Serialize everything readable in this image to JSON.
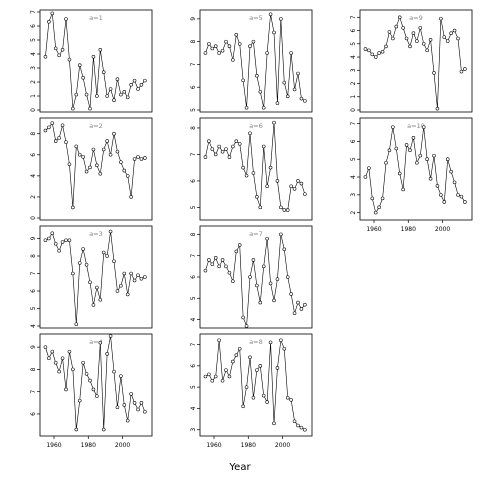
{
  "chart_data": {
    "type": "line",
    "xlabel": "Year",
    "x": [
      1955,
      1957,
      1959,
      1961,
      1963,
      1965,
      1967,
      1969,
      1971,
      1973,
      1975,
      1977,
      1979,
      1981,
      1983,
      1985,
      1987,
      1989,
      1991,
      1993,
      1995,
      1997,
      1999,
      2001,
      2003,
      2005,
      2007,
      2009,
      2011,
      2013
    ],
    "grid": false,
    "panels": [
      {
        "label": "a=1",
        "ylim": [
          0,
          7
        ],
        "yticks": [
          0,
          1,
          2,
          3,
          4,
          5,
          6,
          7
        ],
        "xticks": [],
        "xlim": [
          1953,
          2016
        ],
        "values": [
          3.8,
          6.3,
          6.9,
          4.4,
          3.9,
          4.3,
          6.5,
          3.6,
          0.1,
          1.1,
          3.2,
          2.3,
          1.1,
          0.1,
          3.8,
          1.0,
          4.3,
          2.7,
          1.0,
          1.5,
          0.7,
          2.2,
          1.1,
          1.3,
          0.9,
          1.8,
          2.1,
          1.5,
          1.8,
          2.1
        ]
      },
      {
        "label": "a=5",
        "ylim": [
          5,
          9.3
        ],
        "yticks": [
          5,
          6,
          7,
          8,
          9
        ],
        "xticks": [],
        "xlim": [
          1953,
          2016
        ],
        "values": [
          7.5,
          7.9,
          7.7,
          7.8,
          7.5,
          7.6,
          8.0,
          7.8,
          7.2,
          8.3,
          7.9,
          6.3,
          5.1,
          7.8,
          8.0,
          6.5,
          5.8,
          5.1,
          7.5,
          9.2,
          8.4,
          5.3,
          9.0,
          6.2,
          5.6,
          7.5,
          5.9,
          6.6,
          5.5,
          5.4
        ]
      },
      {
        "label": "a=9",
        "ylim": [
          0,
          7.4
        ],
        "yticks": [
          0,
          1,
          2,
          3,
          4,
          5,
          6,
          7
        ],
        "xticks": [],
        "xlim": [
          1953,
          2016
        ],
        "values": [
          4.6,
          4.5,
          4.2,
          4.0,
          4.3,
          4.4,
          4.8,
          5.9,
          5.4,
          6.3,
          7.0,
          6.2,
          5.4,
          4.8,
          5.8,
          5.2,
          6.2,
          5.0,
          4.5,
          5.3,
          2.8,
          0.1,
          6.9,
          5.5,
          5.2,
          5.8,
          6.0,
          5.4,
          2.9,
          3.1
        ]
      },
      {
        "label": "a=2",
        "ylim": [
          0,
          9.3
        ],
        "yticks": [
          0,
          2,
          4,
          6,
          8
        ],
        "xticks": [],
        "xlim": [
          1953,
          2016
        ],
        "values": [
          8.3,
          8.6,
          9.0,
          7.3,
          7.6,
          8.8,
          7.2,
          5.1,
          1.0,
          6.8,
          6.0,
          5.8,
          4.4,
          4.8,
          6.5,
          5.0,
          4.2,
          6.5,
          7.3,
          6.0,
          8.0,
          6.3,
          5.3,
          4.5,
          4.0,
          2.0,
          5.6,
          5.8,
          5.6,
          5.7
        ]
      },
      {
        "label": "a=6",
        "ylim": [
          4.6,
          8.3
        ],
        "yticks": [
          5,
          6,
          7,
          8
        ],
        "xticks": [],
        "xlim": [
          1953,
          2016
        ],
        "values": [
          6.9,
          7.5,
          7.2,
          7.0,
          7.3,
          7.1,
          7.2,
          6.9,
          7.3,
          7.5,
          7.4,
          6.5,
          6.2,
          7.8,
          6.3,
          5.4,
          5.0,
          7.3,
          5.8,
          6.5,
          8.2,
          6.0,
          5.0,
          4.9,
          4.9,
          5.8,
          5.7,
          6.0,
          5.9,
          5.5
        ]
      },
      {
        "label": "a=10",
        "ylim": [
          1.7,
          7.2
        ],
        "yticks": [
          2,
          3,
          4,
          5,
          6,
          7
        ],
        "xticks": [
          1960,
          1980,
          2000
        ],
        "xlim": [
          1953,
          2016
        ],
        "values": [
          4.0,
          4.5,
          2.8,
          2.0,
          2.3,
          2.8,
          4.8,
          5.5,
          6.8,
          5.6,
          4.2,
          3.3,
          5.8,
          5.5,
          6.2,
          4.8,
          5.2,
          6.8,
          5.0,
          3.9,
          5.2,
          3.5,
          3.0,
          2.6,
          5.0,
          4.3,
          3.7,
          3.0,
          2.9,
          2.6
        ]
      },
      {
        "label": "a=3",
        "ylim": [
          4,
          9.6
        ],
        "yticks": [
          4,
          5,
          6,
          7,
          8,
          9
        ],
        "xticks": [],
        "xlim": [
          1953,
          2016
        ],
        "values": [
          8.9,
          9.0,
          9.3,
          8.7,
          8.3,
          8.8,
          8.9,
          8.9,
          7.0,
          4.1,
          7.6,
          8.4,
          7.5,
          6.5,
          5.2,
          6.2,
          5.5,
          8.2,
          8.0,
          9.4,
          7.7,
          6.0,
          6.3,
          7.0,
          5.8,
          7.0,
          6.6,
          6.9,
          6.7,
          6.8
        ]
      },
      {
        "label": "a=7",
        "ylim": [
          3.7,
          8.3
        ],
        "yticks": [
          4,
          5,
          6,
          7,
          8
        ],
        "xticks": [],
        "xlim": [
          1953,
          2016
        ],
        "values": [
          6.3,
          6.8,
          6.6,
          6.9,
          6.5,
          6.8,
          6.5,
          6.2,
          5.8,
          7.2,
          7.5,
          4.1,
          3.7,
          6.0,
          6.8,
          5.6,
          4.8,
          6.5,
          7.8,
          5.7,
          4.9,
          5.9,
          8.0,
          7.3,
          6.0,
          5.2,
          4.3,
          4.8,
          4.5,
          4.7
        ]
      },
      {
        "label": "a=4",
        "ylim": [
          5.1,
          9.5
        ],
        "yticks": [
          6,
          7,
          8,
          9
        ],
        "xticks": [
          1960,
          1980,
          2000
        ],
        "xlim": [
          1953,
          2016
        ],
        "values": [
          9.0,
          8.5,
          8.8,
          8.3,
          7.9,
          8.5,
          7.1,
          8.8,
          8.0,
          5.3,
          6.6,
          8.3,
          7.8,
          7.5,
          7.1,
          6.8,
          9.2,
          5.3,
          8.7,
          9.5,
          7.9,
          6.3,
          7.7,
          6.4,
          5.7,
          6.9,
          6.5,
          6.2,
          6.5,
          6.1
        ]
      },
      {
        "label": "a=8",
        "ylim": [
          2.8,
          7.4
        ],
        "yticks": [
          3,
          4,
          5,
          6,
          7
        ],
        "xticks": [
          1960,
          1980,
          2000
        ],
        "xlim": [
          1953,
          2016
        ],
        "values": [
          5.5,
          5.6,
          5.3,
          5.5,
          7.2,
          5.3,
          5.8,
          5.5,
          6.2,
          6.5,
          6.8,
          4.1,
          5.0,
          6.4,
          4.5,
          5.8,
          6.0,
          4.6,
          4.3,
          7.1,
          3.3,
          5.9,
          7.2,
          6.8,
          4.5,
          4.4,
          3.4,
          3.2,
          3.1,
          3.0
        ]
      }
    ]
  }
}
